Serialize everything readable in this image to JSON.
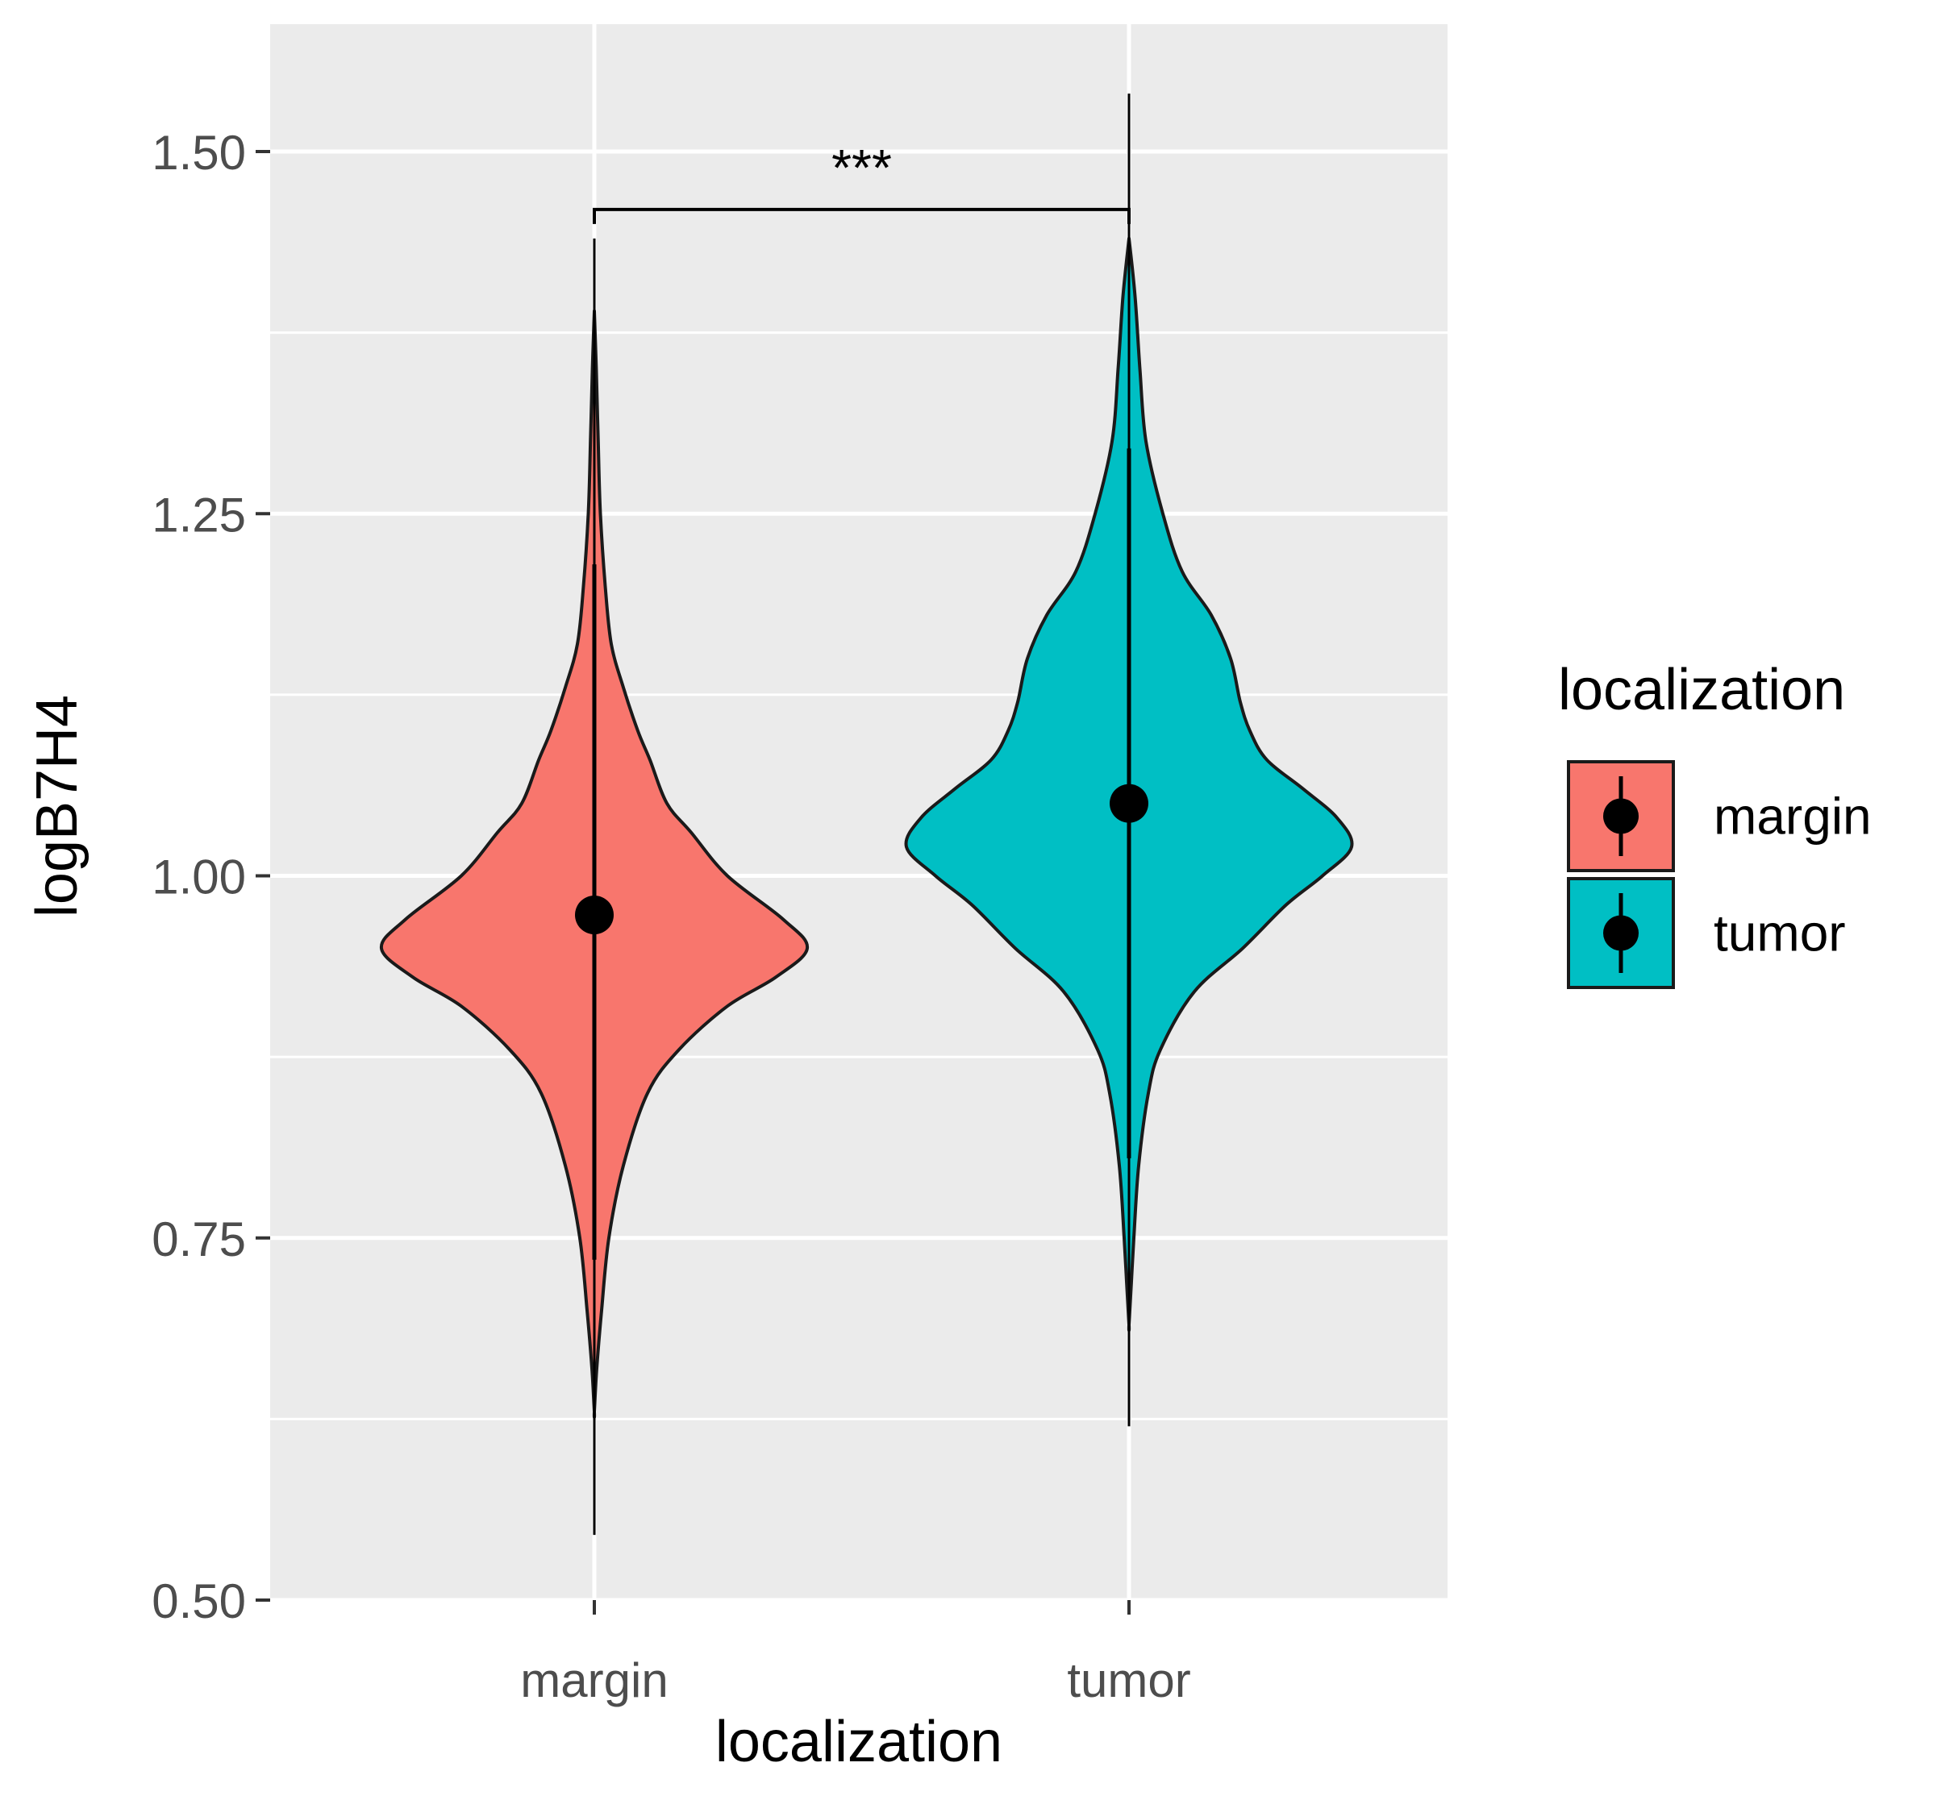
{
  "chart_data": {
    "type": "violin",
    "xlabel": "localization",
    "ylabel": "logB7H4",
    "ylim": [
      0.5,
      1.6
    ],
    "yticks": [
      0.5,
      0.75,
      1.0,
      1.25,
      1.5
    ],
    "ytick_labels": [
      "0.50",
      "0.75",
      "1.00",
      "1.25",
      "1.50"
    ],
    "categories": [
      "margin",
      "tumor"
    ],
    "significance": {
      "label": "***",
      "between": [
        "margin",
        "tumor"
      ],
      "y": 1.46
    },
    "grid": true,
    "legend": {
      "title": "localization",
      "position": "right",
      "items": [
        "margin",
        "tumor"
      ]
    },
    "series": [
      {
        "name": "margin",
        "color": "#F8766D",
        "min": 0.545,
        "max": 1.44,
        "mean": 0.973,
        "line_low": 0.735,
        "line_high": 1.215,
        "density": [
          [
            0.63,
            0.0
          ],
          [
            0.66,
            0.01
          ],
          [
            0.7,
            0.03
          ],
          [
            0.75,
            0.06
          ],
          [
            0.8,
            0.12
          ],
          [
            0.85,
            0.22
          ],
          [
            0.88,
            0.35
          ],
          [
            0.91,
            0.55
          ],
          [
            0.93,
            0.75
          ],
          [
            0.95,
            0.88
          ],
          [
            0.97,
            0.78
          ],
          [
            1.0,
            0.55
          ],
          [
            1.03,
            0.4
          ],
          [
            1.05,
            0.3
          ],
          [
            1.08,
            0.23
          ],
          [
            1.1,
            0.18
          ],
          [
            1.13,
            0.12
          ],
          [
            1.16,
            0.07
          ],
          [
            1.2,
            0.045
          ],
          [
            1.25,
            0.025
          ],
          [
            1.3,
            0.016
          ],
          [
            1.35,
            0.008
          ],
          [
            1.39,
            0.0
          ]
        ]
      },
      {
        "name": "tumor",
        "color": "#00BFC4",
        "min": 0.62,
        "max": 1.54,
        "mean": 1.05,
        "line_low": 0.805,
        "line_high": 1.295,
        "density": [
          [
            0.69,
            0.0
          ],
          [
            0.72,
            0.01
          ],
          [
            0.75,
            0.02
          ],
          [
            0.8,
            0.04
          ],
          [
            0.85,
            0.08
          ],
          [
            0.88,
            0.13
          ],
          [
            0.92,
            0.27
          ],
          [
            0.95,
            0.47
          ],
          [
            0.98,
            0.65
          ],
          [
            1.0,
            0.8
          ],
          [
            1.02,
            0.92
          ],
          [
            1.04,
            0.86
          ],
          [
            1.06,
            0.72
          ],
          [
            1.08,
            0.57
          ],
          [
            1.1,
            0.5
          ],
          [
            1.12,
            0.46
          ],
          [
            1.15,
            0.42
          ],
          [
            1.18,
            0.34
          ],
          [
            1.21,
            0.22
          ],
          [
            1.25,
            0.14
          ],
          [
            1.3,
            0.07
          ],
          [
            1.35,
            0.045
          ],
          [
            1.4,
            0.025
          ],
          [
            1.44,
            0.0
          ]
        ]
      }
    ]
  }
}
